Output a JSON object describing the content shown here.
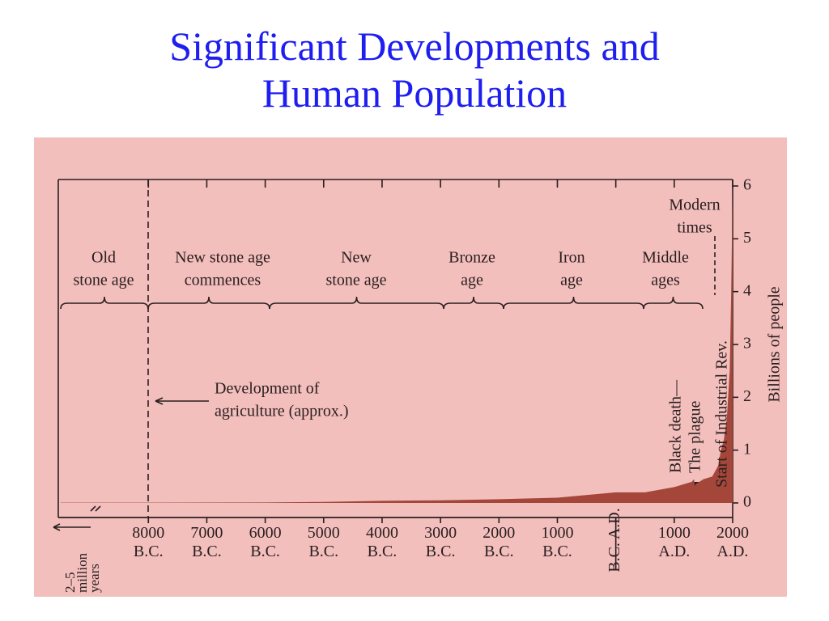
{
  "chart_data": {
    "type": "area",
    "title": "Significant Developments and Human Population",
    "y_axis_label": "Billions of people",
    "color": "#a4473a",
    "x": [
      -9500,
      -8000,
      -6000,
      -5000,
      -4000,
      -3000,
      -2000,
      -1000,
      0,
      500,
      1000,
      1300,
      1340,
      1350,
      1360,
      1500,
      1650,
      1750,
      1800,
      1850,
      1900,
      1950,
      1975,
      2000
    ],
    "values": [
      0.005,
      0.005,
      0.01,
      0.02,
      0.04,
      0.05,
      0.07,
      0.1,
      0.2,
      0.2,
      0.3,
      0.4,
      0.45,
      0.3,
      0.35,
      0.45,
      0.5,
      0.7,
      1,
      1.2,
      1.6,
      2.5,
      4,
      6
    ],
    "xlim": [
      -9500,
      2000
    ],
    "xticks": [
      {
        "value": -8000,
        "label": "8000 B.C."
      },
      {
        "value": -7000,
        "label": "7000 B.C."
      },
      {
        "value": -6000,
        "label": "6000 B.C."
      },
      {
        "value": -5000,
        "label": "5000 B.C."
      },
      {
        "value": -4000,
        "label": "4000 B.C."
      },
      {
        "value": -3000,
        "label": "3000 B.C."
      },
      {
        "value": -2000,
        "label": "2000 B.C."
      },
      {
        "value": -1000,
        "label": "1000 B.C."
      },
      {
        "value": 0,
        "label": "B.C. A.D."
      },
      {
        "value": 1000,
        "label": "1000 A.D."
      },
      {
        "value": 2000,
        "label": "2000 A.D."
      }
    ],
    "ylim": [
      0,
      6
    ],
    "yticks": [
      0,
      1,
      2,
      3,
      4,
      5,
      6
    ],
    "eras": [
      {
        "lines": [
          "Old",
          "stone age"
        ]
      },
      {
        "lines": [
          "New stone age",
          "commences"
        ]
      },
      {
        "lines": [
          "New",
          "stone age"
        ]
      },
      {
        "lines": [
          "Bronze",
          "age"
        ]
      },
      {
        "lines": [
          "Iron",
          "age"
        ]
      },
      {
        "lines": [
          "Middle",
          "ages"
        ]
      },
      {
        "lines": [
          "Modern",
          "times"
        ]
      }
    ],
    "annotations": {
      "agriculture": [
        "Development of",
        "agriculture (approx.)"
      ],
      "plague": [
        "Black death—",
        "The plague"
      ],
      "industrial": "Start of Industrial Rev.",
      "deep_time": [
        "2–5",
        "million",
        "years"
      ]
    }
  }
}
